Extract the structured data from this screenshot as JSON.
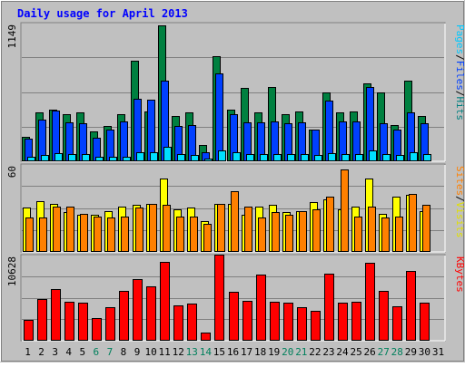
{
  "chart_data": {
    "title": "Daily usage for April 2013",
    "days": [
      "1",
      "2",
      "3",
      "4",
      "5",
      "6",
      "7",
      "8",
      "9",
      "10",
      "11",
      "12",
      "13",
      "14",
      "15",
      "16",
      "17",
      "18",
      "19",
      "20",
      "21",
      "22",
      "23",
      "24",
      "25",
      "26",
      "27",
      "28",
      "29",
      "30",
      "31"
    ],
    "weekend_days": [
      "6",
      "7",
      "13",
      "14",
      "20",
      "21",
      "27",
      "28"
    ],
    "panels": [
      {
        "type": "bar",
        "scale_label": "1149",
        "ymax": 1149,
        "series": [
          {
            "name": "Hits",
            "color": "#008040",
            "values": [
              210,
              410,
              440,
              400,
              410,
              250,
              300,
              400,
              850,
              420,
              1149,
              380,
              410,
              140,
              890,
              440,
              620,
              410,
              630,
              400,
              420,
              270,
              580,
              410,
              420,
              660,
              580,
              310,
              680,
              380,
              null
            ]
          },
          {
            "name": "Files",
            "color": "#0040ff",
            "values": [
              190,
              350,
              430,
              330,
              320,
              200,
              270,
              340,
              530,
              520,
              680,
              300,
              310,
              80,
              740,
              400,
              330,
              330,
              340,
              320,
              330,
              270,
              510,
              340,
              340,
              630,
              320,
              270,
              410,
              320,
              null
            ]
          },
          {
            "name": "Pages",
            "color": "#00e0ff",
            "values": [
              40,
              50,
              70,
              60,
              60,
              40,
              40,
              40,
              80,
              80,
              120,
              60,
              50,
              20,
              90,
              80,
              60,
              60,
              60,
              60,
              60,
              50,
              70,
              60,
              60,
              90,
              60,
              50,
              80,
              60,
              null
            ]
          }
        ]
      },
      {
        "type": "bar",
        "scale_label": "60",
        "ymax": 60,
        "series": [
          {
            "name": "Visits",
            "color": "#ffff00",
            "values": [
              31,
              36,
              34,
              28,
              26,
              26,
              29,
              32,
              33,
              34,
              52,
              30,
              31,
              22,
              34,
              34,
              26,
              32,
              33,
              28,
              29,
              35,
              37,
              30,
              32,
              52,
              27,
              39,
              40,
              29,
              null
            ]
          },
          {
            "name": "Sites",
            "color": "#ff8000",
            "values": [
              24,
              24,
              32,
              32,
              27,
              25,
              24,
              25,
              31,
              34,
              33,
              25,
              25,
              20,
              34,
              43,
              32,
              24,
              28,
              26,
              29,
              30,
              39,
              58,
              25,
              32,
              24,
              25,
              41,
              33,
              null
            ]
          }
        ]
      },
      {
        "type": "bar",
        "scale_label": "10628",
        "ymax": 10628,
        "series": [
          {
            "name": "KBytes",
            "color": "#ff0000",
            "values": [
              2700,
              5300,
              6600,
              5000,
              4800,
              2900,
              4300,
              6300,
              7900,
              6900,
              10000,
              4500,
              4700,
              1000,
              11000,
              6200,
              5100,
              8400,
              5000,
              4800,
              4300,
              3800,
              8500,
              4800,
              5000,
              9900,
              6300,
              4400,
              8900,
              4900,
              null
            ]
          }
        ]
      }
    ],
    "right_labels": {
      "panel1": [
        {
          "text": "Pages",
          "color": "#00c8ff"
        },
        {
          "text": "/",
          "color": "#000000"
        },
        {
          "text": "Files",
          "color": "#0040ff"
        },
        {
          "text": "/",
          "color": "#000000"
        },
        {
          "text": "Hits",
          "color": "#008080"
        }
      ],
      "panel2": [
        {
          "text": "Sites",
          "color": "#ff8000"
        },
        {
          "text": "/",
          "color": "#000000"
        },
        {
          "text": "Visits",
          "color": "#e0e000"
        }
      ],
      "panel3": [
        {
          "text": "KBytes",
          "color": "#ff0000"
        }
      ]
    },
    "colors": {
      "title": "#0000ff",
      "weekday_label": "#000000",
      "weekend_label": "#00805c",
      "chart_bg": "#c0c0c0",
      "outer_bg": "#c0c0c0",
      "gridline": "#808080"
    }
  }
}
